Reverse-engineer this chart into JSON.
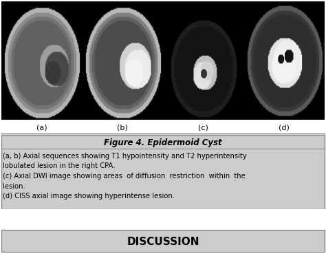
{
  "figure_bg": "#ffffff",
  "image_panel_bg": "#000000",
  "caption_bg": "#cccccc",
  "caption_title": "Figure 4. Epidermoid Cyst",
  "caption_body_lines": [
    "(a, b) Axial sequences showing T1 hypointensity and T2 hyperintensity",
    "lobulated lesion in the right CPA.",
    "(c) Axial DWI image showing areas  of diffusion  restriction  within  the",
    "lesion.",
    "(d) CISS axial image showing hyperintense lesion."
  ],
  "sublabels": [
    "(a)",
    "(b)",
    "(c)",
    "(d)"
  ],
  "sublabel_bg": "#ffffff",
  "discussion_bg": "#cccccc",
  "discussion_text": "DISCUSSION",
  "panel_border_color": "#888888",
  "num_images": 4,
  "font_family": "DejaVu Sans"
}
